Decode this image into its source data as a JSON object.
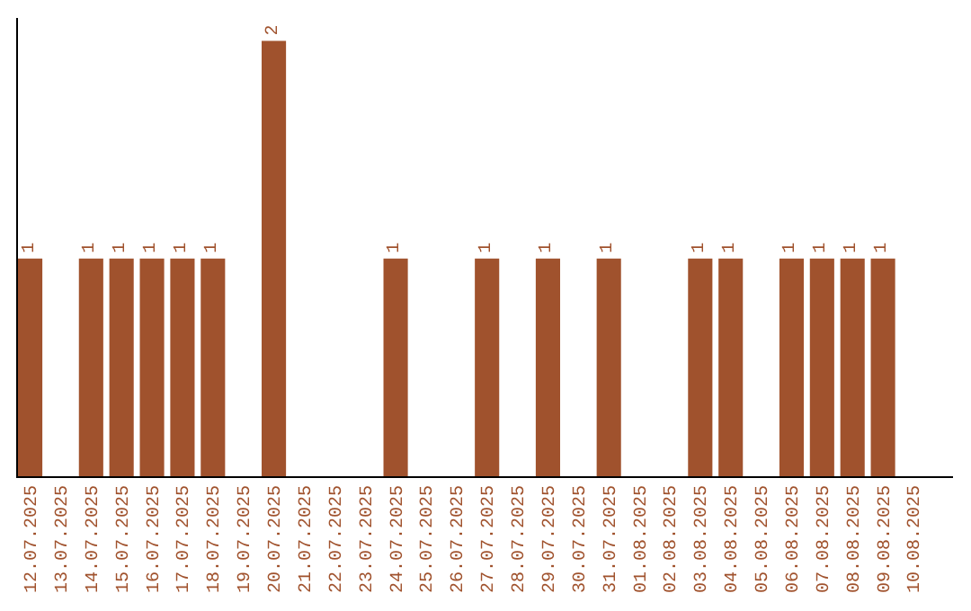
{
  "chart_data": {
    "type": "bar",
    "categories": [
      "12.07.2025",
      "13.07.2025",
      "14.07.2025",
      "15.07.2025",
      "16.07.2025",
      "17.07.2025",
      "18.07.2025",
      "19.07.2025",
      "20.07.2025",
      "21.07.2025",
      "22.07.2025",
      "23.07.2025",
      "24.07.2025",
      "25.07.2025",
      "26.07.2025",
      "27.07.2025",
      "28.07.2025",
      "29.07.2025",
      "30.07.2025",
      "31.07.2025",
      "01.08.2025",
      "02.08.2025",
      "03.08.2025",
      "04.08.2025",
      "05.08.2025",
      "06.08.2025",
      "07.08.2025",
      "08.08.2025",
      "09.08.2025",
      "10.08.2025"
    ],
    "values": [
      1,
      0,
      1,
      1,
      1,
      1,
      1,
      0,
      2,
      0,
      0,
      0,
      1,
      0,
      0,
      1,
      0,
      1,
      0,
      1,
      0,
      0,
      1,
      1,
      0,
      1,
      1,
      1,
      1,
      0
    ],
    "value_labels": [
      "1",
      null,
      "1",
      "1",
      "1",
      "1",
      "1",
      null,
      "2",
      null,
      null,
      null,
      "1",
      null,
      null,
      "1",
      null,
      "1",
      null,
      "1",
      null,
      null,
      "1",
      "1",
      null,
      "1",
      "1",
      "1",
      "1",
      null
    ],
    "color": "#a0522d",
    "tick_labels": "x"
  }
}
